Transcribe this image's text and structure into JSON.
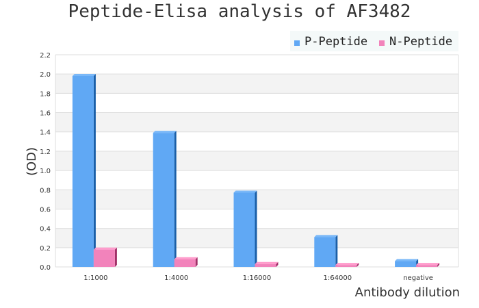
{
  "chart_data": {
    "type": "bar",
    "title": "Peptide-Elisa analysis of AF3482",
    "xlabel": "Antibody dilution",
    "ylabel": "(OD)",
    "categories": [
      "1:1000",
      "1:4000",
      "1:16000",
      "1:64000",
      "negative"
    ],
    "series": [
      {
        "name": "P-Peptide",
        "color": "#60a8f4",
        "values": [
          1.98,
          1.39,
          0.77,
          0.31,
          0.06
        ]
      },
      {
        "name": "N-Peptide",
        "color": "#f283bb",
        "values": [
          0.18,
          0.08,
          0.03,
          0.02,
          0.02
        ]
      }
    ],
    "ylim": [
      0,
      2.2
    ],
    "yticks": [
      "0.0",
      "0.2",
      "0.4",
      "0.6",
      "0.8",
      "1.0",
      "1.2",
      "1.4",
      "1.6",
      "1.8",
      "2.0",
      "2.2"
    ],
    "grid": true,
    "legend_position": "top-right"
  }
}
